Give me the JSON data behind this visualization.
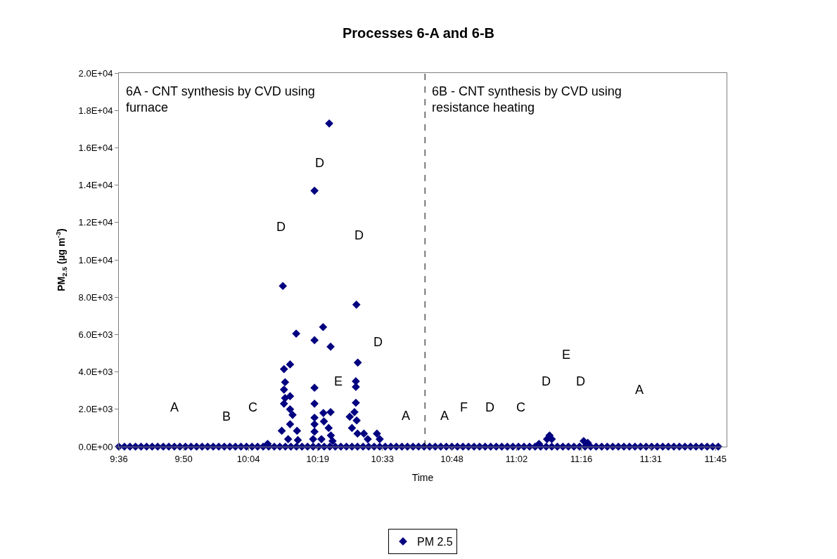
{
  "chart_data": {
    "type": "scatter",
    "title": "Processes 6-A and 6-B",
    "xlabel": "Time",
    "ylabel": "PM$_{2.5}$ (µg m$^{-3}$)",
    "series": [
      {
        "name": "PM 2.5",
        "color": "#000080",
        "x": [
          9.6,
          9.62,
          9.64,
          9.66,
          9.68,
          9.7,
          9.72,
          9.74,
          9.76,
          9.78,
          9.8,
          9.82,
          9.84,
          9.86,
          9.88,
          9.9,
          9.92,
          9.94,
          9.96,
          9.98,
          10.0,
          10.02,
          10.04,
          10.06,
          10.08,
          10.1,
          10.12,
          10.14,
          10.16,
          10.18,
          10.2,
          10.22,
          10.24,
          10.26,
          10.28,
          10.3,
          10.32,
          10.34,
          10.36,
          10.38,
          10.4,
          10.42,
          10.44,
          10.46,
          10.48,
          10.5,
          10.52,
          10.54,
          10.56,
          10.58,
          10.6,
          10.62,
          10.64,
          10.66,
          10.68,
          10.7,
          10.72,
          10.74,
          10.76,
          10.78,
          10.8,
          10.82,
          10.84,
          10.86,
          10.88,
          10.9,
          10.92,
          10.94,
          10.96,
          10.98,
          11.0,
          11.02,
          11.04,
          11.06,
          11.08,
          11.1,
          11.12,
          11.14,
          11.16,
          11.18,
          11.2,
          11.22,
          11.24,
          11.26,
          11.28,
          11.3,
          11.32,
          11.34,
          11.36,
          11.38,
          11.4,
          11.42,
          11.44,
          11.46,
          11.48,
          11.5,
          11.52,
          11.54,
          11.56,
          11.58,
          11.6,
          11.62,
          11.64,
          11.66,
          11.68,
          11.7,
          11.72,
          11.74,
          11.76,
          10.358,
          10.305,
          10.191,
          10.456,
          10.239,
          10.336,
          10.305,
          10.363,
          10.461,
          10.217,
          10.195,
          10.199,
          10.195,
          10.217,
          10.199,
          10.195,
          10.305,
          10.454,
          10.454,
          10.305,
          10.454,
          10.217,
          10.226,
          10.337,
          10.363,
          10.305,
          10.449,
          10.217,
          10.187,
          10.242,
          10.305,
          10.305,
          10.339,
          10.356,
          10.364,
          10.432,
          10.457,
          10.44,
          10.46,
          10.483,
          10.497,
          10.53,
          10.54,
          10.21,
          10.245,
          10.3,
          10.33,
          10.37,
          10.136,
          11.152,
          11.16,
          11.143,
          11.275,
          11.29,
          11.114
        ],
        "values": [
          0,
          0,
          0,
          0,
          0,
          0,
          0,
          0,
          0,
          0,
          0,
          0,
          0,
          0,
          0,
          0,
          0,
          0,
          0,
          0,
          0,
          0,
          0,
          0,
          0,
          0,
          0,
          0,
          0,
          0,
          0,
          0,
          0,
          0,
          0,
          0,
          0,
          0,
          0,
          0,
          0,
          0,
          0,
          0,
          0,
          0,
          0,
          0,
          0,
          0,
          0,
          0,
          0,
          0,
          0,
          0,
          0,
          0,
          0,
          0,
          0,
          0,
          0,
          0,
          0,
          0,
          0,
          0,
          0,
          0,
          0,
          0,
          0,
          0,
          0,
          0,
          0,
          0,
          0,
          0,
          0,
          0,
          0,
          0,
          0,
          0,
          0,
          0,
          0,
          0,
          0,
          0,
          0,
          0,
          0,
          0,
          0,
          0,
          0,
          0,
          0,
          0,
          0,
          0,
          0,
          0,
          0,
          0,
          0,
          17300,
          13700,
          8600,
          7600,
          6050,
          6400,
          5700,
          5350,
          4500,
          4400,
          4150,
          3450,
          3050,
          2700,
          2600,
          2300,
          3150,
          3500,
          3200,
          2300,
          2350,
          2000,
          1700,
          1800,
          1850,
          1550,
          1850,
          1200,
          850,
          850,
          1200,
          800,
          1350,
          1000,
          600,
          1600,
          1400,
          1000,
          700,
          700,
          400,
          700,
          400,
          400,
          350,
          400,
          400,
          300,
          150,
          600,
          400,
          400,
          300,
          200,
          150
        ]
      }
    ],
    "marker": "diamond",
    "legend": "bottom",
    "xlim": [
      9.6,
      11.79
    ],
    "xticks": [
      {
        "value": 9.6,
        "label": "9:36"
      },
      {
        "value": 9.8333,
        "label": "9:50"
      },
      {
        "value": 10.0667,
        "label": "10:04"
      },
      {
        "value": 10.3167,
        "label": "10:19"
      },
      {
        "value": 10.55,
        "label": "10:33"
      },
      {
        "value": 10.8,
        "label": "10:48"
      },
      {
        "value": 11.0333,
        "label": "11:02"
      },
      {
        "value": 11.2667,
        "label": "11:16"
      },
      {
        "value": 11.5167,
        "label": "11:31"
      },
      {
        "value": 11.75,
        "label": "11:45"
      }
    ],
    "ylim": [
      0,
      20000
    ],
    "yticks": [
      {
        "value": 0,
        "label": "0.0E+00"
      },
      {
        "value": 2000,
        "label": "2.0E+03"
      },
      {
        "value": 4000,
        "label": "4.0E+03"
      },
      {
        "value": 6000,
        "label": "6.0E+03"
      },
      {
        "value": 8000,
        "label": "8.0E+03"
      },
      {
        "value": 10000,
        "label": "1.0E+04"
      },
      {
        "value": 12000,
        "label": "1.2E+04"
      },
      {
        "value": 14000,
        "label": "1.4E+04"
      },
      {
        "value": 16000,
        "label": "1.6E+04"
      },
      {
        "value": 18000,
        "label": "1.8E+04"
      },
      {
        "value": 20000,
        "label": "2.0E+04"
      }
    ],
    "ref_lines": [
      {
        "axis": "x",
        "value": 10.703,
        "line_style": "dashed",
        "color": "#000000"
      }
    ],
    "annotations": [
      "6A - CNT synthesis by CVD using\nfurnace",
      "6B - CNT synthesis by CVD using\nresistance heating",
      "A",
      "B",
      "C",
      "D",
      "D",
      "D",
      "D",
      "E",
      "A",
      "A",
      "F",
      "D",
      "C",
      "D",
      "E",
      "D",
      "A"
    ]
  }
}
